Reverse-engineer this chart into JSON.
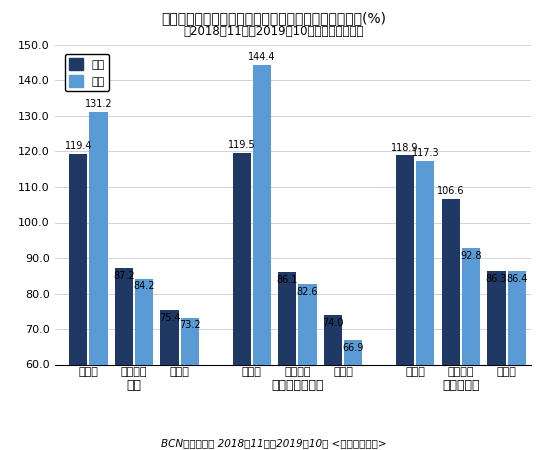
{
  "title": "レンズ交換型カメラ、メーカー・タイプ別販売前年比(%)",
  "subtitle": "（2018年11月～2019年10月の前年同期比）",
  "footer": "BCNランキング 2018年11月～2019年10月 <時系列パネル>",
  "groups": [
    "全体",
    "フルサイズ未満",
    "フルサイズ"
  ],
  "brands": [
    "ソニー",
    "キヤノン",
    "ニコン"
  ],
  "data_units": [
    119.4,
    87.2,
    75.4,
    119.5,
    86.1,
    74.0,
    118.9,
    106.6,
    86.3
  ],
  "data_money": [
    131.2,
    84.2,
    73.2,
    144.4,
    82.6,
    66.9,
    117.3,
    92.8,
    86.4
  ],
  "color_units": "#1F3864",
  "color_money": "#5B9BD5",
  "ylim": [
    60.0,
    150.0
  ],
  "yticks": [
    60.0,
    70.0,
    80.0,
    90.0,
    100.0,
    110.0,
    120.0,
    130.0,
    140.0,
    150.0
  ],
  "legend_labels": [
    "台数",
    "金額"
  ],
  "bar_width": 0.38
}
